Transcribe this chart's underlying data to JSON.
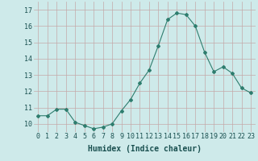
{
  "x": [
    0,
    1,
    2,
    3,
    4,
    5,
    6,
    7,
    8,
    9,
    10,
    11,
    12,
    13,
    14,
    15,
    16,
    17,
    18,
    19,
    20,
    21,
    22,
    23
  ],
  "y": [
    10.5,
    10.5,
    10.9,
    10.9,
    10.1,
    9.9,
    9.7,
    9.8,
    10.0,
    10.8,
    11.5,
    12.5,
    13.3,
    14.8,
    16.4,
    16.8,
    16.7,
    16.0,
    14.4,
    13.2,
    13.5,
    13.1,
    12.2,
    11.9
  ],
  "line_color": "#2e7d6e",
  "marker": "D",
  "marker_size": 2,
  "bg_color": "#ceeaea",
  "grid_color": "#c4a8a8",
  "xlabel": "Humidex (Indice chaleur)",
  "ylim": [
    9.5,
    17.5
  ],
  "yticks": [
    10,
    11,
    12,
    13,
    14,
    15,
    16,
    17
  ],
  "xticks": [
    0,
    1,
    2,
    3,
    4,
    5,
    6,
    7,
    8,
    9,
    10,
    11,
    12,
    13,
    14,
    15,
    16,
    17,
    18,
    19,
    20,
    21,
    22,
    23
  ],
  "xlabel_fontsize": 7,
  "tick_fontsize": 6,
  "linewidth": 0.8
}
